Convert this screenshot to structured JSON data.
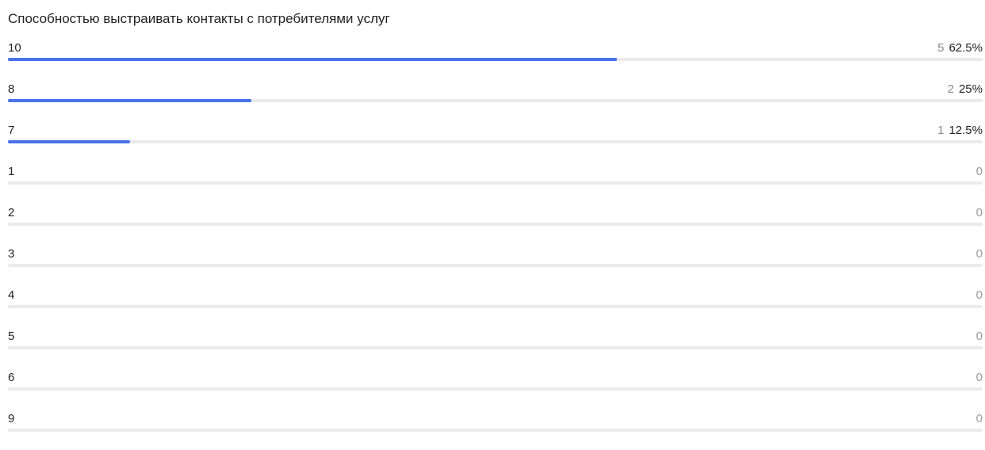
{
  "chart_data": {
    "type": "bar",
    "title": "Способностью выстраивать контакты с потребителями услуг",
    "colors": {
      "bar": "#4a72e8",
      "track": "#ebebed"
    },
    "rows": [
      {
        "label": "10",
        "count": "5",
        "percent": "62.5%",
        "share": 0.625
      },
      {
        "label": "8",
        "count": "2",
        "percent": "25%",
        "share": 0.25
      },
      {
        "label": "7",
        "count": "1",
        "percent": "12.5%",
        "share": 0.125
      },
      {
        "label": "1",
        "count": "0",
        "percent": "",
        "share": 0
      },
      {
        "label": "2",
        "count": "0",
        "percent": "",
        "share": 0
      },
      {
        "label": "3",
        "count": "0",
        "percent": "",
        "share": 0
      },
      {
        "label": "4",
        "count": "0",
        "percent": "",
        "share": 0
      },
      {
        "label": "5",
        "count": "0",
        "percent": "",
        "share": 0
      },
      {
        "label": "6",
        "count": "0",
        "percent": "",
        "share": 0
      },
      {
        "label": "9",
        "count": "0",
        "percent": "",
        "share": 0
      }
    ]
  }
}
